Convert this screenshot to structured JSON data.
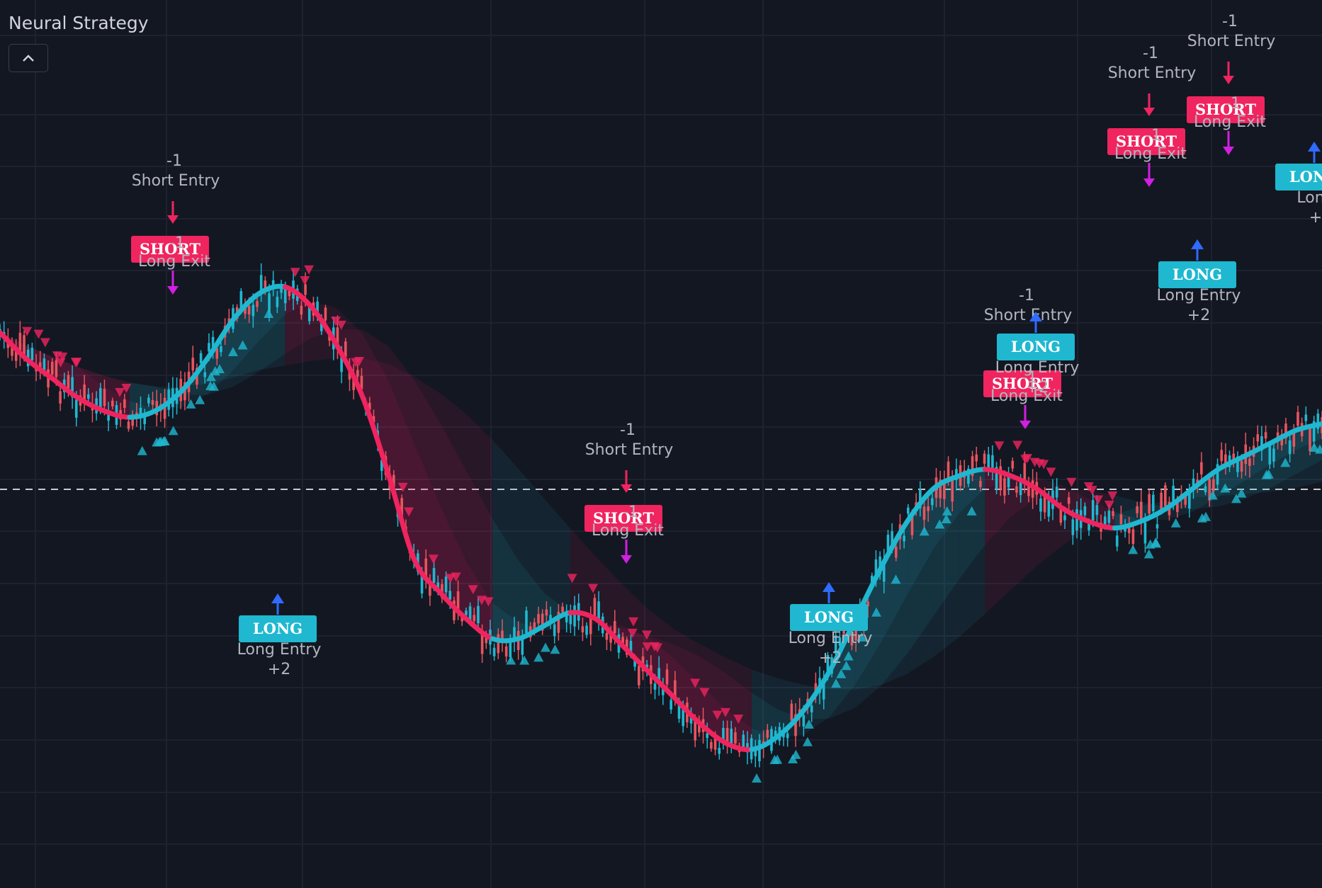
{
  "header": {
    "title": "Neural Strategy",
    "collapse_icon": "chevron-up-icon"
  },
  "colors": {
    "background": "#131722",
    "bull": "#1fb8d0",
    "bear": "#f0245f",
    "exit": "#d21fe0",
    "entry_arrow": "#2f6bff",
    "grid": "#1e2230",
    "text": "#b2b5be"
  },
  "chart_data": {
    "type": "line",
    "title": "Neural Strategy",
    "xlabel": "",
    "ylabel": "",
    "grid": true,
    "reference_line": "dashed",
    "series": [
      {
        "values": [
          62,
          58,
          55,
          52,
          50,
          49,
          50,
          53,
          58,
          64,
          68,
          69,
          66,
          60,
          52,
          40,
          27,
          22,
          18,
          15,
          15,
          17,
          19,
          18,
          14,
          10,
          6,
          2,
          -1,
          -2,
          0,
          4,
          10,
          18,
          26,
          33,
          38,
          40,
          41,
          40,
          38,
          35,
          33,
          32,
          33,
          35,
          38,
          41,
          43,
          45,
          47,
          48
        ]
      }
    ],
    "signals": [
      {
        "type": "short",
        "badge": "SHORT",
        "label": "Short Entry",
        "qty": "-1",
        "exit_label": "Long Exit",
        "exit_qty": "-1"
      },
      {
        "type": "long",
        "badge": "LONG",
        "label": "Long Entry",
        "qty": "+2"
      },
      {
        "type": "short",
        "badge": "SHORT",
        "label": "Short Entry",
        "qty": "-1",
        "exit_label": "Long Exit",
        "exit_qty": "-1"
      },
      {
        "type": "long",
        "badge": "LONG",
        "label": "Long Entry",
        "qty": "+2"
      },
      {
        "type": "short",
        "badge": "SHORT",
        "label": "Short Entry",
        "qty": "-1",
        "exit_label": "Long Exit",
        "exit_qty": "-1"
      },
      {
        "type": "long",
        "badge": "LONG",
        "label": "Long Entry",
        "qty": "+2"
      },
      {
        "type": "short",
        "badge": "SHORT",
        "label": "Short Entry",
        "qty": "-1",
        "exit_label": "Long Exit",
        "exit_qty": "-1"
      },
      {
        "type": "long",
        "badge": "LONG",
        "label": "Long Entry",
        "qty": "+2"
      },
      {
        "type": "short",
        "badge": "SHORT",
        "label": "Short Entry",
        "qty": "-1",
        "exit_label": "Long Exit",
        "exit_qty": "-1"
      },
      {
        "type": "long",
        "badge": "LONG",
        "label": "Long",
        "qty": "+"
      }
    ]
  }
}
